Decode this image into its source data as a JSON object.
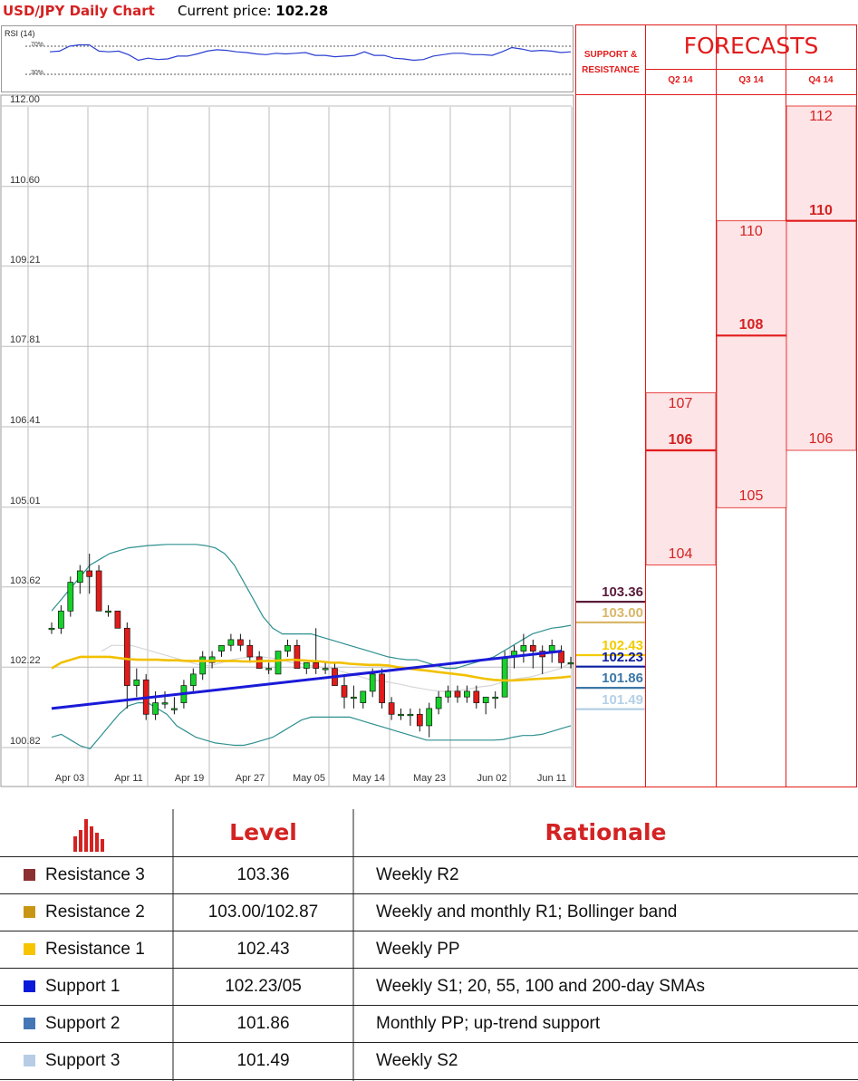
{
  "header": {
    "title": "USD/JPY Daily Chart",
    "price_label": "Current price:",
    "price_value": "102.28"
  },
  "rsi": {
    "label": "RSI (14)",
    "upper": "70%",
    "lower": "30%",
    "values": [
      62,
      63,
      70,
      72,
      72,
      63,
      62,
      63,
      58,
      50,
      53,
      51,
      52,
      56,
      56,
      59,
      63,
      65,
      64,
      62,
      61,
      59,
      58,
      60,
      59,
      60,
      61,
      57,
      57,
      55,
      56,
      57,
      62,
      57,
      57,
      53,
      52,
      50,
      51,
      56,
      58,
      60,
      60,
      58,
      58,
      57,
      62,
      68,
      66,
      63,
      64,
      63,
      61,
      62
    ]
  },
  "chart_data": [
    {
      "type": "candlestick",
      "title": "USD/JPY Daily Chart",
      "y_ticks": [
        "112.00",
        "110.60",
        "109.21",
        "107.81",
        "106.41",
        "105.01",
        "103.62",
        "102.22",
        "100.82"
      ],
      "ylim": [
        100.5,
        112.0
      ],
      "x_ticks": [
        "Apr 03",
        "Apr 11",
        "Apr 19",
        "Apr 27",
        "May 05",
        "May 14",
        "May 23",
        "Jun 02",
        "Jun 11"
      ],
      "candles": [
        [
          102.9,
          103.0,
          102.8,
          102.9
        ],
        [
          102.9,
          103.3,
          102.8,
          103.2
        ],
        [
          103.2,
          103.8,
          103.1,
          103.7
        ],
        [
          103.7,
          104.0,
          103.5,
          103.9
        ],
        [
          103.9,
          104.2,
          103.5,
          103.8
        ],
        [
          103.9,
          104.0,
          103.2,
          103.2
        ],
        [
          103.2,
          103.3,
          103.1,
          103.2
        ],
        [
          103.2,
          103.2,
          102.9,
          102.9
        ],
        [
          102.9,
          103.0,
          101.5,
          101.9
        ],
        [
          101.9,
          102.2,
          101.7,
          102.0
        ],
        [
          102.0,
          102.1,
          101.3,
          101.4
        ],
        [
          101.4,
          101.8,
          101.3,
          101.6
        ],
        [
          101.6,
          101.8,
          101.5,
          101.6
        ],
        [
          101.5,
          101.7,
          101.4,
          101.5
        ],
        [
          101.6,
          102.0,
          101.5,
          101.9
        ],
        [
          101.9,
          102.2,
          101.8,
          102.1
        ],
        [
          102.1,
          102.5,
          102.0,
          102.4
        ],
        [
          102.3,
          102.5,
          102.2,
          102.4
        ],
        [
          102.5,
          102.6,
          102.4,
          102.6
        ],
        [
          102.6,
          102.8,
          102.5,
          102.7
        ],
        [
          102.7,
          102.8,
          102.5,
          102.6
        ],
        [
          102.6,
          102.7,
          102.3,
          102.4
        ],
        [
          102.4,
          102.5,
          102.2,
          102.2
        ],
        [
          102.2,
          102.3,
          102.1,
          102.2
        ],
        [
          102.1,
          102.5,
          102.1,
          102.5
        ],
        [
          102.5,
          102.7,
          102.4,
          102.6
        ],
        [
          102.6,
          102.7,
          102.2,
          102.2
        ],
        [
          102.2,
          102.3,
          102.1,
          102.3
        ],
        [
          102.3,
          102.9,
          102.1,
          102.2
        ],
        [
          102.2,
          102.3,
          102.1,
          102.2
        ],
        [
          102.2,
          102.3,
          101.9,
          101.9
        ],
        [
          101.9,
          102.1,
          101.5,
          101.7
        ],
        [
          101.7,
          101.9,
          101.5,
          101.7
        ],
        [
          101.6,
          101.8,
          101.5,
          101.8
        ],
        [
          101.8,
          102.2,
          101.7,
          102.1
        ],
        [
          102.1,
          102.2,
          101.5,
          101.6
        ],
        [
          101.6,
          101.7,
          101.3,
          101.4
        ],
        [
          101.4,
          101.5,
          101.3,
          101.4
        ],
        [
          101.4,
          101.5,
          101.2,
          101.4
        ],
        [
          101.4,
          101.5,
          101.1,
          101.2
        ],
        [
          101.2,
          101.6,
          101.0,
          101.5
        ],
        [
          101.5,
          101.8,
          101.4,
          101.7
        ],
        [
          101.7,
          101.9,
          101.6,
          101.8
        ],
        [
          101.8,
          101.9,
          101.6,
          101.7
        ],
        [
          101.7,
          101.9,
          101.6,
          101.8
        ],
        [
          101.8,
          101.9,
          101.5,
          101.6
        ],
        [
          101.6,
          101.7,
          101.4,
          101.7
        ],
        [
          101.7,
          101.8,
          101.5,
          101.7
        ],
        [
          101.7,
          102.5,
          101.7,
          102.4
        ],
        [
          102.4,
          102.6,
          102.2,
          102.5
        ],
        [
          102.5,
          102.8,
          102.3,
          102.6
        ],
        [
          102.6,
          102.7,
          102.2,
          102.5
        ],
        [
          102.5,
          102.6,
          102.1,
          102.4
        ],
        [
          102.5,
          102.7,
          102.3,
          102.6
        ],
        [
          102.5,
          102.6,
          102.2,
          102.3
        ],
        [
          102.3,
          102.4,
          102.2,
          102.3
        ]
      ],
      "sma_blue": [
        [
          0,
          101.5
        ],
        [
          54,
          102.5
        ]
      ],
      "sma_yellow": [
        102.2,
        102.3,
        102.35,
        102.4,
        102.4,
        102.4,
        102.4,
        102.38,
        102.36,
        102.35,
        102.35,
        102.35,
        102.34,
        102.34,
        102.33,
        102.33,
        102.33,
        102.33,
        102.33,
        102.33,
        102.32,
        102.32,
        102.33,
        102.33,
        102.34,
        102.35,
        102.34,
        102.33,
        102.32,
        102.3,
        102.3,
        102.28,
        102.27,
        102.26,
        102.26,
        102.25,
        102.22,
        102.2,
        102.18,
        102.16,
        102.14,
        102.12,
        102.1,
        102.08,
        102.05,
        102.02,
        102.0,
        101.99,
        101.99,
        102.0,
        102.01,
        102.02,
        102.03,
        102.04,
        102.06
      ],
      "bb_upper": [
        103.2,
        103.4,
        103.6,
        103.8,
        104.0,
        104.1,
        104.2,
        104.25,
        104.3,
        104.32,
        104.34,
        104.35,
        104.36,
        104.36,
        104.36,
        104.36,
        104.34,
        104.3,
        104.2,
        104.0,
        103.7,
        103.4,
        103.1,
        102.9,
        102.8,
        102.8,
        102.8,
        102.8,
        102.75,
        102.7,
        102.65,
        102.6,
        102.55,
        102.5,
        102.45,
        102.4,
        102.37,
        102.35,
        102.35,
        102.3,
        102.25,
        102.2,
        102.2,
        102.25,
        102.3,
        102.35,
        102.4,
        102.5,
        102.6,
        102.7,
        102.8,
        102.85,
        102.9,
        102.92,
        102.95
      ],
      "bb_lower": [
        101.0,
        101.05,
        100.95,
        100.85,
        100.8,
        101.0,
        101.2,
        101.4,
        101.55,
        101.6,
        101.6,
        101.5,
        101.4,
        101.2,
        101.1,
        101.0,
        100.95,
        100.9,
        100.88,
        100.86,
        100.86,
        100.9,
        100.95,
        101.0,
        101.1,
        101.2,
        101.3,
        101.35,
        101.35,
        101.35,
        101.35,
        101.35,
        101.3,
        101.25,
        101.2,
        101.15,
        101.1,
        101.05,
        101.0,
        100.95,
        100.95,
        100.95,
        100.95,
        100.95,
        100.95,
        100.95,
        100.95,
        100.96,
        101.0,
        101.03,
        101.03,
        101.05,
        101.1,
        101.15,
        101.2
      ],
      "bb_mid": [
        null,
        null,
        null,
        null,
        null,
        102.5,
        102.6,
        102.6,
        102.6,
        102.55,
        102.5,
        102.45,
        102.4,
        102.35,
        102.3,
        102.25,
        102.25,
        102.3,
        102.35,
        102.38,
        102.4,
        102.4,
        102.38,
        102.35,
        102.3,
        102.28,
        102.25,
        102.22,
        102.2,
        102.15,
        102.1,
        102.05,
        102.0,
        101.98,
        101.95,
        101.92,
        101.88,
        101.85,
        101.82,
        101.8,
        101.8,
        101.82,
        101.85,
        101.88,
        101.9,
        101.95,
        102.0,
        102.03,
        102.05,
        102.1,
        102.15,
        102.2,
        102.3
      ]
    },
    {
      "type": "table",
      "title": "FORECASTS",
      "columns": [
        "Q2 14",
        "Q3 14",
        "Q4 14"
      ],
      "forecasts": [
        {
          "quarter": "Q2 14",
          "high": 107,
          "mid": 106,
          "low": 104
        },
        {
          "quarter": "Q3 14",
          "high": 110,
          "mid": 108,
          "low": 105
        },
        {
          "quarter": "Q4 14",
          "high": 112,
          "mid": 110,
          "low": 106
        }
      ],
      "support_resistance_header": "SUPPORT & RESISTANCE",
      "levels": [
        {
          "value": "103.36",
          "color": "#5a1b3a"
        },
        {
          "value": "103.00",
          "color": "#d9b768"
        },
        {
          "value": "102.43",
          "color": "#f2cc00"
        },
        {
          "value": "102.23",
          "color": "#0a1ea0"
        },
        {
          "value": "101.86",
          "color": "#3b77a8"
        },
        {
          "value": "101.49",
          "color": "#b4d0e6"
        }
      ]
    }
  ],
  "table": {
    "headers": {
      "level": "Level",
      "rationale": "Rationale"
    },
    "rows": [
      {
        "name": "Resistance 3",
        "level": "103.36",
        "rationale": "Weekly R2",
        "color": "#8b2f2f"
      },
      {
        "name": "Resistance 2",
        "level": "103.00/102.87",
        "rationale": "Weekly and monthly R1; Bollinger band",
        "color": "#c89612"
      },
      {
        "name": "Resistance 1",
        "level": "102.43",
        "rationale": "Weekly PP",
        "color": "#f6c400"
      },
      {
        "name": "Support 1",
        "level": "102.23/05",
        "rationale": "Weekly S1; 20, 55, 100 and 200-day SMAs",
        "color": "#0a1ad8"
      },
      {
        "name": "Support 2",
        "level": "101.86",
        "rationale": "Monthly PP; up-trend support",
        "color": "#4577b4"
      },
      {
        "name": "Support 3",
        "level": "101.49",
        "rationale": "Weekly S2",
        "color": "#b7cde6"
      }
    ]
  }
}
